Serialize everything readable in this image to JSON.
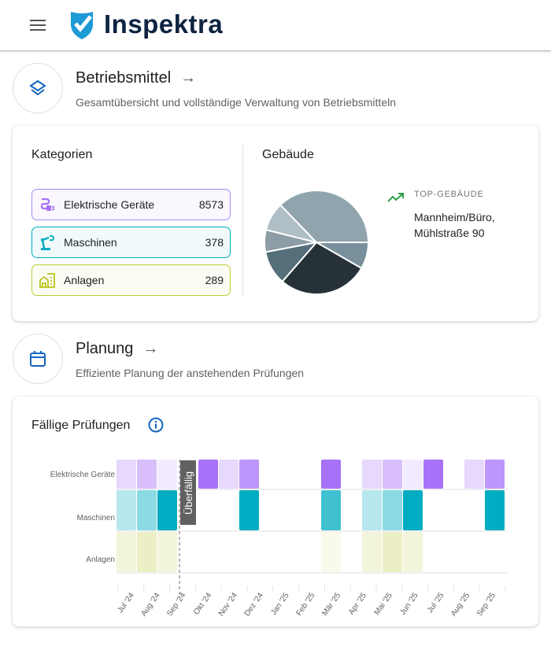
{
  "header": {
    "app_name": "Inspektra",
    "menu_icon": "hamburger-icon",
    "logo_icon": "shield-check-icon",
    "brand_color": "#0d2340",
    "logo_color": "#1e9ad6"
  },
  "betriebsmittel": {
    "title": "Betriebsmittel",
    "subtitle": "Gesamtübersicht und vollständige Verwaltung von Betriebsmitteln",
    "icon": "layers-icon",
    "kategorien": {
      "title": "Kategorien",
      "items": [
        {
          "label": "Elektrische Geräte",
          "count": "8573",
          "icon": "plug-icon",
          "color": "#a78bfa"
        },
        {
          "label": "Maschinen",
          "count": "378",
          "icon": "robot-arm-icon",
          "color": "#00acc1"
        },
        {
          "label": "Anlagen",
          "count": "289",
          "icon": "building-icon",
          "color": "#c0ca33"
        }
      ]
    },
    "gebaeude": {
      "title": "Gebäude",
      "top_label": "TOP-GEBÄUDE",
      "top_value_line1": "Mannheim/Büro,",
      "top_value_line2": "Mühlstraße 90",
      "trend_icon": "trending-up-icon",
      "trend_color": "#2e9d4a"
    }
  },
  "planung": {
    "title": "Planung",
    "subtitle": "Effiziente Planung der anstehenden Prüfungen",
    "icon": "calendar-icon",
    "chart_title": "Fällige Prüfungen",
    "info_icon": "info-icon",
    "overdue_label": "Überfällig"
  },
  "chart_data": [
    {
      "type": "pie",
      "title": "Gebäude",
      "slices_percent": [
        8.3,
        28.1,
        10.6,
        6.9,
        8.9,
        37.2
      ],
      "colors": [
        "#78909c",
        "#263238",
        "#546e7a",
        "#8d9da6",
        "#b0bec5",
        "#90a4ae"
      ]
    },
    {
      "type": "heatmap",
      "title": "Fällige Prüfungen",
      "rows": [
        "Elektrische Geräte",
        "Maschinen",
        "Anlagen"
      ],
      "row_colors": [
        "#a872f8",
        "#00acc1",
        "#d4dc7a"
      ],
      "x_tick_labels": [
        "Jul '24",
        "Aug '24",
        "Sep '24",
        "Okt '24",
        "Nov '24",
        "Dez '24",
        "Jan '25",
        "Feb '25",
        "Mär '25",
        "Apr '25",
        "Mai '25",
        "Jun '25",
        "Jul '25",
        "Aug '25",
        "Sep '25"
      ],
      "overdue_marker": "Sep '24",
      "cells": [
        [
          [
            0,
            1
          ],
          [
            1,
            2
          ],
          [
            2,
            0.5
          ],
          [
            4,
            4
          ],
          [
            5,
            1
          ],
          [
            6,
            3
          ],
          [
            10,
            4
          ],
          [
            12,
            1
          ],
          [
            13,
            2
          ],
          [
            14,
            0.5
          ],
          [
            15,
            4
          ],
          [
            17,
            1
          ],
          [
            18,
            3
          ]
        ],
        [
          [
            0,
            1
          ],
          [
            1,
            2
          ],
          [
            2,
            4
          ],
          [
            6,
            4
          ],
          [
            10,
            3
          ],
          [
            12,
            1
          ],
          [
            13,
            2
          ],
          [
            14,
            4
          ],
          [
            18,
            4
          ]
        ],
        [
          [
            0,
            1
          ],
          [
            1,
            2
          ],
          [
            2,
            1
          ],
          [
            10,
            0.5
          ],
          [
            12,
            1
          ],
          [
            13,
            2
          ],
          [
            14,
            1
          ]
        ]
      ]
    }
  ]
}
